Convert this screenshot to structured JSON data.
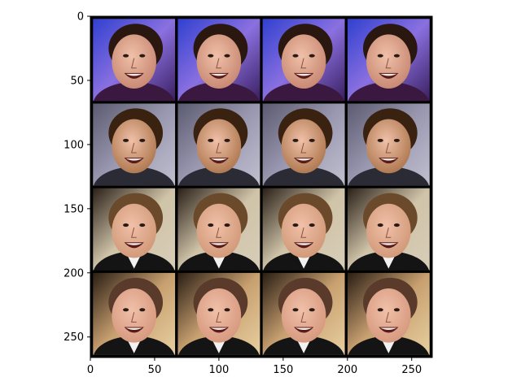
{
  "figure": {
    "image_extent": {
      "x": [
        0,
        266
      ],
      "y": [
        266,
        0
      ]
    },
    "grid": {
      "rows": 4,
      "cols": 4,
      "tile_size": 64,
      "padding": 2,
      "separator_color": "#000000"
    },
    "x_ticks": [
      0,
      50,
      100,
      150,
      200,
      250
    ],
    "y_ticks": [
      0,
      50,
      100,
      150,
      200,
      250
    ],
    "x_tick_labels": [
      "0",
      "50",
      "100",
      "150",
      "200",
      "250"
    ],
    "y_tick_labels": [
      "0",
      "50",
      "100",
      "150",
      "200",
      "250"
    ],
    "rows": [
      {
        "content": "woman-face-blue-purple-background",
        "skin": "#c98a74",
        "hair": "#2a1710",
        "background": [
          "#3040d0",
          "#8a70e0",
          "#3a1f60"
        ]
      },
      {
        "content": "man-face-gray-background",
        "skin": "#b07a52",
        "hair": "#3a2210",
        "background": [
          "#5a5a70",
          "#9a98b0",
          "#c0c0d0"
        ]
      },
      {
        "content": "man-face-beige-background-dark-suit",
        "skin": "#d29a7a",
        "hair": "#6a4a2a",
        "background": [
          "#2a2018",
          "#cfc3a8",
          "#d8cdb8"
        ]
      },
      {
        "content": "man-face-warm-background-smiling",
        "skin": "#d79a80",
        "hair": "#5a3a2a",
        "background": [
          "#2a1e14",
          "#c8a070",
          "#e8d0a0"
        ]
      }
    ]
  }
}
